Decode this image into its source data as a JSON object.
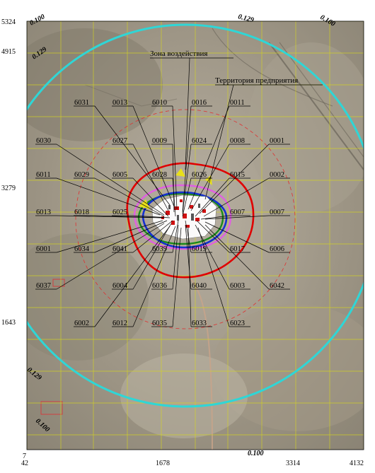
{
  "map": {
    "axes": {
      "y_ticks": [
        "5324",
        "4915",
        "3279",
        "1643",
        "7"
      ],
      "x_ticks": [
        "42",
        "1678",
        "3314",
        "4132"
      ]
    },
    "isolines": [
      {
        "value": "0.100",
        "color": "#2fd6d6"
      },
      {
        "value": "0.129",
        "color": "#2fd6d6"
      }
    ],
    "iso_labels": [
      "0.100",
      "0.129",
      "0.129",
      "0.100",
      "0.129",
      "0.100",
      "0.100"
    ],
    "zones": {
      "impact": "Зона воздействия",
      "territory": "Территория предприятия"
    },
    "sources": [
      "6031",
      "0013",
      "6010",
      "0016",
      "0011",
      "6027",
      "0009",
      "6024",
      "0008",
      "0001",
      "6030",
      "6029",
      "6005",
      "6028",
      "6026",
      "6015",
      "0002",
      "6011",
      "6013",
      "6018",
      "6025",
      "6007",
      "0007",
      "6001",
      "6034",
      "6041",
      "6039",
      "6019",
      "6017",
      "6006",
      "6037",
      "6004",
      "6036",
      "6040",
      "6003",
      "6042",
      "6002",
      "6012",
      "6035",
      "6033",
      "6023"
    ],
    "colors": {
      "isoline_cyan": "#2fd6d6",
      "red_contour": "#e00000",
      "pink_contour": "#e060e0",
      "green_contour": "#1a8a1a",
      "blue_contour": "#1530d0",
      "sanitary_zone": "#e03030",
      "grid": "#d8d81a"
    }
  }
}
